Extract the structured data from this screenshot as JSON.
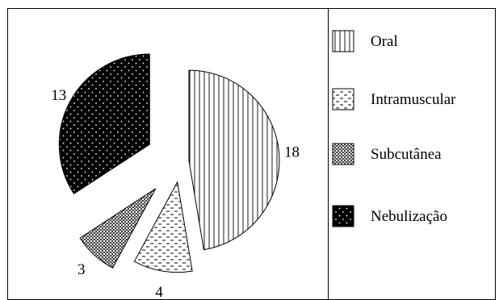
{
  "chart_data": {
    "type": "pie",
    "title": "",
    "categories": [
      "Oral",
      "Intramuscular",
      "Subcutânea",
      "Nebulização"
    ],
    "values": [
      18,
      4,
      3,
      13
    ],
    "value_labels": [
      "18",
      "4",
      "3",
      "13"
    ],
    "exploded": true,
    "legend_position": "right",
    "patterns": [
      "vertical-lines",
      "horizontal-dashes",
      "crosshatch-dots",
      "black-with-white-dots"
    ]
  }
}
